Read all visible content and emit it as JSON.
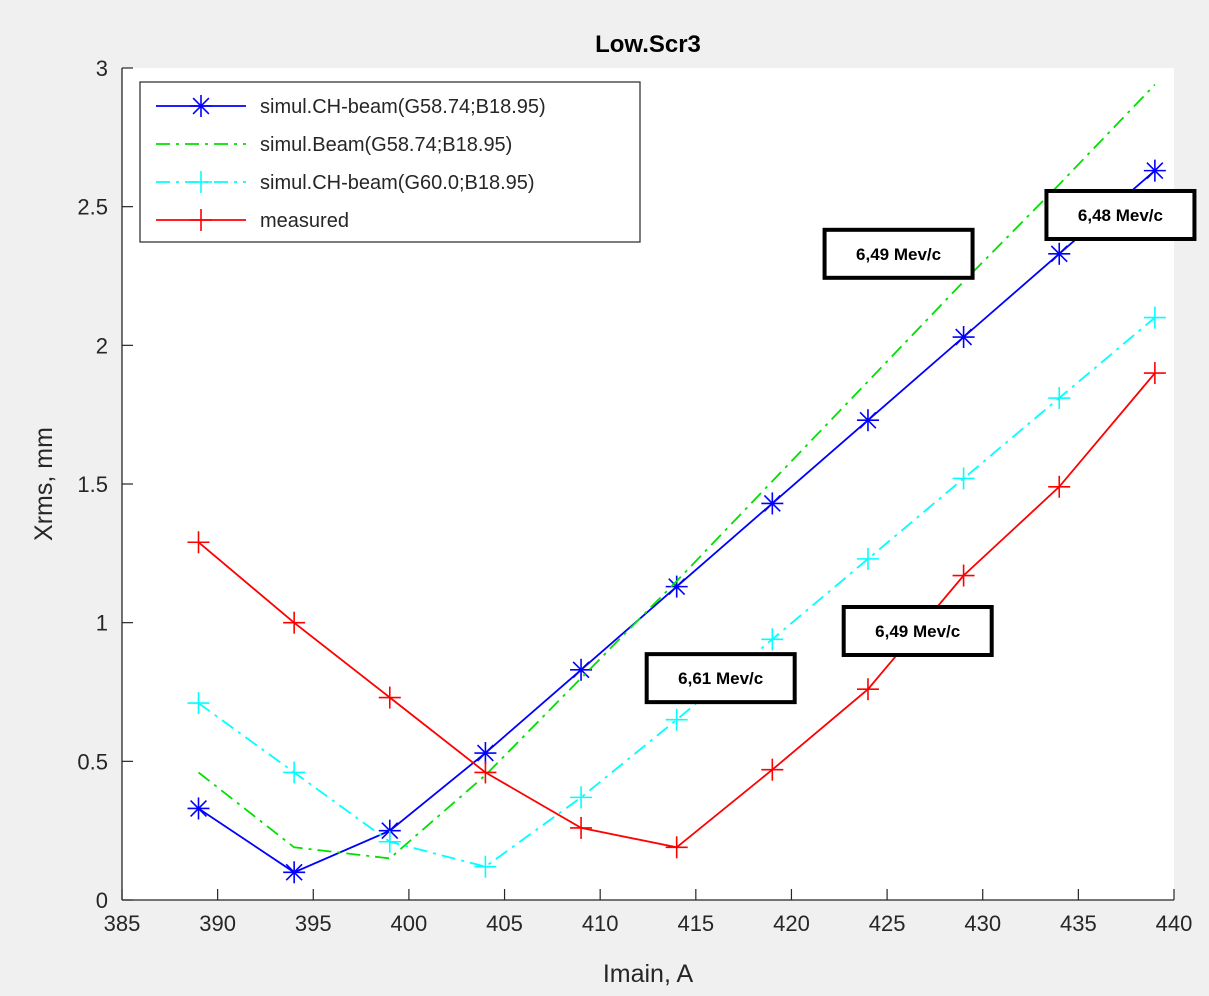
{
  "chart_data": {
    "type": "line",
    "title": "Low.Scr3",
    "xlabel": "Imain, A",
    "ylabel": "Xrms, mm",
    "xlim": [
      385,
      440
    ],
    "ylim": [
      0,
      3
    ],
    "xticks": [
      "385",
      "390",
      "395",
      "400",
      "405",
      "410",
      "415",
      "420",
      "425",
      "430",
      "435",
      "440"
    ],
    "yticks": [
      "0",
      "0.5",
      "1",
      "1.5",
      "2",
      "2.5",
      "3"
    ],
    "grid": false,
    "legend_position": "top-left",
    "series": [
      {
        "name": "simul.CH-beam(G58.74;B18.95)",
        "color": "#0000ff",
        "line_style": "solid",
        "marker": "asterisk",
        "x": [
          389,
          394,
          399,
          404,
          409,
          414,
          419,
          424,
          429,
          434,
          439
        ],
        "y": [
          0.33,
          0.1,
          0.25,
          0.53,
          0.83,
          1.13,
          1.43,
          1.73,
          2.03,
          2.33,
          2.63
        ]
      },
      {
        "name": "simul.Beam(G58.74;B18.95)",
        "color": "#00e000",
        "line_style": "dash-dot",
        "marker": "none",
        "x": [
          389,
          394,
          399,
          404,
          409,
          414,
          419,
          424,
          429,
          434,
          439
        ],
        "y": [
          0.46,
          0.19,
          0.15,
          0.45,
          0.8,
          1.15,
          1.51,
          1.87,
          2.23,
          2.58,
          2.94
        ]
      },
      {
        "name": "simul.CH-beam(G60.0;B18.95)",
        "color": "#00ffff",
        "line_style": "dash-dot",
        "marker": "plus",
        "x": [
          389,
          394,
          399,
          404,
          409,
          414,
          419,
          424,
          429,
          434,
          439
        ],
        "y": [
          0.71,
          0.46,
          0.21,
          0.12,
          0.37,
          0.65,
          0.94,
          1.23,
          1.52,
          1.81,
          2.1
        ]
      },
      {
        "name": "measured",
        "color": "#ff0000",
        "line_style": "solid",
        "marker": "plus",
        "x": [
          389,
          394,
          399,
          404,
          409,
          414,
          419,
          424,
          429,
          434,
          439
        ],
        "y": [
          1.29,
          1.0,
          0.73,
          0.46,
          0.26,
          0.19,
          0.47,
          0.76,
          1.17,
          1.49,
          1.9
        ]
      }
    ],
    "annotations": [
      {
        "text": "6,48 Mev/c",
        "x": 437.2,
        "y": 2.47
      },
      {
        "text": "6,49 Mev/c",
        "x": 425.6,
        "y": 2.33
      },
      {
        "text": "6,49 Mev/c",
        "x": 426.6,
        "y": 0.97
      },
      {
        "text": "6,61 Mev/c",
        "x": 416.3,
        "y": 0.8
      }
    ]
  }
}
